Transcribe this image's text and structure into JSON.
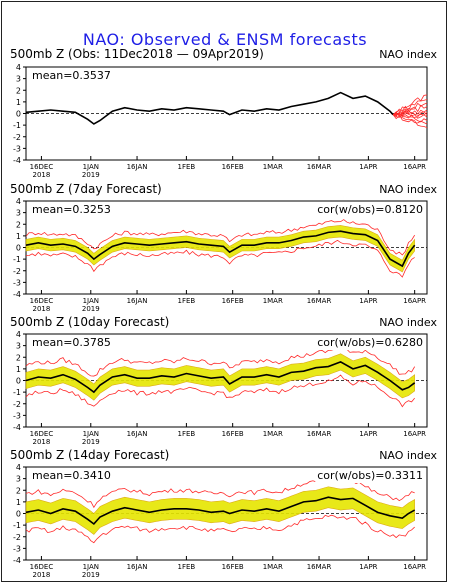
{
  "page": {
    "title": "NAO: Observed & ENSM forecasts",
    "title_color": "#1e1ee6"
  },
  "colors": {
    "observed": "#000000",
    "members": "#ff2a2a",
    "spread": "#e6e600",
    "spread_edge": "#d9a400",
    "zero_line": "#000000",
    "x_tick_labels": "#000000"
  },
  "x_axis": {
    "tick_labels": [
      "16DEC\n2018",
      "1JAN\n2019",
      "16JAN",
      "1FEB",
      "16FEB",
      "1MAR",
      "16MAR",
      "1APR",
      "16APR"
    ],
    "tick_days": [
      5,
      21,
      36,
      52,
      67,
      80,
      95,
      111,
      126
    ]
  },
  "chart_data": [
    {
      "type": "line",
      "panel": "observed",
      "title": "500mb Z (Obs: 11Dec2018 — 09Apr2019)",
      "right_label": "NAO index",
      "stat_label": "mean=0.3537",
      "cor_label": "",
      "ylim": [
        -4,
        4
      ],
      "yticks": [
        -4,
        -3,
        -2,
        -1,
        0,
        1,
        2,
        3,
        4
      ],
      "xlim": [
        0,
        130
      ],
      "observed": {
        "x": [
          0,
          4,
          8,
          12,
          16,
          20,
          22,
          24,
          28,
          32,
          36,
          40,
          44,
          48,
          52,
          56,
          60,
          64,
          66,
          70,
          74,
          78,
          82,
          86,
          90,
          94,
          98,
          102,
          106,
          110,
          114,
          118,
          119
        ],
        "y": [
          0.1,
          0.2,
          0.3,
          0.2,
          0.1,
          -0.5,
          -0.9,
          -0.6,
          0.2,
          0.5,
          0.3,
          0.2,
          0.4,
          0.3,
          0.5,
          0.4,
          0.3,
          0.2,
          -0.1,
          0.3,
          0.2,
          0.4,
          0.3,
          0.6,
          0.8,
          1.0,
          1.3,
          1.8,
          1.3,
          1.5,
          1.0,
          0.2,
          -0.1
        ]
      },
      "members_start": 119,
      "members_end": 130,
      "members_end_values": [
        1.6,
        1.2,
        0.9,
        0.6,
        0.3,
        0.1,
        -0.1,
        -0.3,
        -0.6,
        -0.9,
        -1.2
      ]
    },
    {
      "type": "line",
      "panel": "7day",
      "title": "500mb Z (7day Forecast)",
      "right_label": "NAO index",
      "stat_label": "mean=0.3253",
      "cor_label": "cor(w/obs)=0.8120",
      "ylim": [
        -4,
        4
      ],
      "yticks": [
        -4,
        -3,
        -2,
        -1,
        0,
        1,
        2,
        3,
        4
      ],
      "xlim": [
        0,
        130
      ],
      "observed": {
        "x": [
          0,
          4,
          8,
          12,
          16,
          20,
          22,
          24,
          28,
          32,
          36,
          40,
          44,
          48,
          52,
          56,
          60,
          64,
          66,
          70,
          74,
          78,
          82,
          86,
          90,
          94,
          98,
          102,
          106,
          110,
          114,
          118,
          122,
          124,
          126
        ],
        "y": [
          0.2,
          0.4,
          0.2,
          0.3,
          0.1,
          -0.5,
          -1.0,
          -0.6,
          0.1,
          0.4,
          0.3,
          0.2,
          0.3,
          0.4,
          0.5,
          0.3,
          0.2,
          0.1,
          -0.4,
          0.2,
          0.2,
          0.4,
          0.4,
          0.6,
          0.9,
          1.0,
          1.3,
          1.4,
          1.2,
          1.1,
          0.6,
          -1.0,
          -1.6,
          -0.5,
          0.2
        ]
      },
      "spread": 0.5,
      "member_spread": 0.9
    },
    {
      "type": "line",
      "panel": "10day",
      "title": "500mb Z (10day Forecast)",
      "right_label": "NAO index",
      "stat_label": "mean=0.3785",
      "cor_label": "cor(w/obs)=0.6280",
      "ylim": [
        -4,
        4
      ],
      "yticks": [
        -4,
        -3,
        -2,
        -1,
        0,
        1,
        2,
        3,
        4
      ],
      "xlim": [
        0,
        130
      ],
      "observed": {
        "x": [
          0,
          4,
          8,
          12,
          16,
          20,
          22,
          24,
          28,
          32,
          36,
          40,
          44,
          48,
          52,
          56,
          60,
          64,
          66,
          70,
          74,
          78,
          82,
          86,
          90,
          94,
          98,
          102,
          106,
          110,
          114,
          118,
          122,
          124,
          126
        ],
        "y": [
          0.0,
          0.3,
          0.2,
          0.5,
          0.1,
          -0.6,
          -1.0,
          -0.4,
          0.3,
          0.5,
          0.2,
          0.2,
          0.4,
          0.3,
          0.6,
          0.4,
          0.2,
          0.3,
          -0.3,
          0.3,
          0.3,
          0.5,
          0.3,
          0.7,
          0.8,
          1.1,
          1.2,
          1.6,
          1.0,
          1.3,
          0.7,
          0.0,
          -0.8,
          -0.6,
          -0.2
        ]
      },
      "spread": 0.7,
      "member_spread": 1.3
    },
    {
      "type": "line",
      "panel": "14day",
      "title": "500mb Z (14day Forecast)",
      "right_label": "NAO index",
      "stat_label": "mean=0.3410",
      "cor_label": "cor(w/obs)=0.3311",
      "ylim": [
        -4,
        4
      ],
      "yticks": [
        -4,
        -3,
        -2,
        -1,
        0,
        1,
        2,
        3,
        4
      ],
      "xlim": [
        0,
        130
      ],
      "observed": {
        "x": [
          0,
          4,
          8,
          12,
          16,
          20,
          22,
          24,
          28,
          32,
          36,
          40,
          44,
          48,
          52,
          56,
          60,
          64,
          66,
          70,
          74,
          78,
          82,
          86,
          90,
          94,
          98,
          102,
          106,
          110,
          114,
          118,
          122,
          124,
          126
        ],
        "y": [
          0.1,
          0.3,
          0.0,
          0.4,
          0.2,
          -0.5,
          -0.9,
          -0.3,
          0.2,
          0.5,
          0.3,
          0.1,
          0.3,
          0.4,
          0.4,
          0.3,
          0.1,
          0.2,
          0.0,
          0.3,
          0.2,
          0.4,
          0.2,
          0.6,
          1.0,
          1.1,
          1.4,
          1.2,
          1.3,
          0.7,
          0.1,
          -0.2,
          -0.4,
          0.0,
          0.3
        ]
      },
      "spread": 0.9,
      "member_spread": 1.6
    }
  ]
}
